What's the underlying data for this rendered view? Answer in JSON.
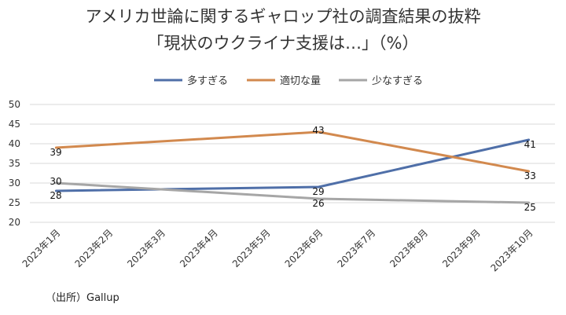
{
  "chart_data": {
    "type": "line",
    "title_line1": "アメリカ世論に関するギャロップ社の調査結果の抜粋",
    "title_line2": "「現状のウクライナ支援は…」（%）",
    "categories": [
      "2023年1月",
      "2023年2月",
      "2023年3月",
      "2023年4月",
      "2023年5月",
      "2023年6月",
      "2023年7月",
      "2023年8月",
      "2023年9月",
      "2023年10月"
    ],
    "series": [
      {
        "name": "多すぎる",
        "color": "#4f6fa8",
        "points": [
          {
            "index": 0,
            "value": 28
          },
          {
            "index": 5,
            "value": 29
          },
          {
            "index": 9,
            "value": 41
          }
        ]
      },
      {
        "name": "適切な量",
        "color": "#d2894e",
        "points": [
          {
            "index": 0,
            "value": 39
          },
          {
            "index": 5,
            "value": 43
          },
          {
            "index": 9,
            "value": 33
          }
        ]
      },
      {
        "name": "少なすぎる",
        "color": "#a6a6a6",
        "points": [
          {
            "index": 0,
            "value": 30
          },
          {
            "index": 5,
            "value": 26
          },
          {
            "index": 9,
            "value": 25
          }
        ]
      }
    ],
    "ylim": [
      20,
      50
    ],
    "yticks": [
      20,
      25,
      30,
      35,
      40,
      45,
      50
    ],
    "grid": true,
    "legend_position": "top-center",
    "source": "（出所）Gallup"
  }
}
